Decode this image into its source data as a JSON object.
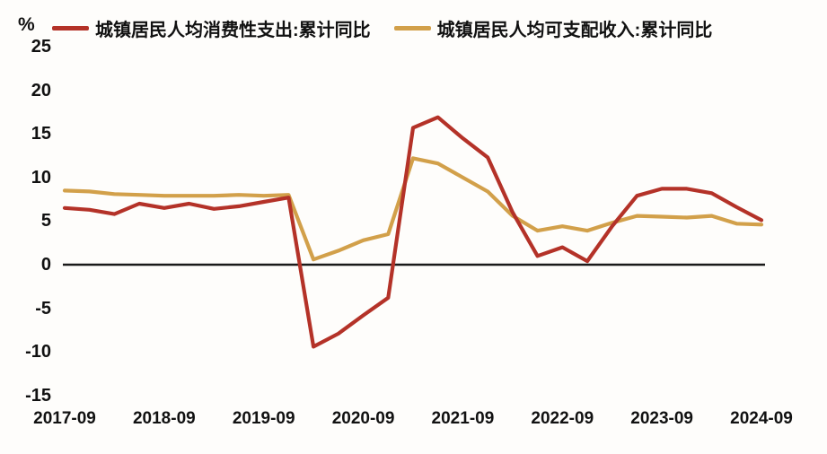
{
  "chart_data": {
    "type": "line",
    "title": "",
    "unit_label": "%",
    "xlabel": "",
    "ylabel": "%",
    "ylim": [
      -15,
      25
    ],
    "yticks": [
      25,
      20,
      15,
      10,
      5,
      0,
      -5,
      -10,
      -15
    ],
    "xticks": [
      "2017-09",
      "2018-09",
      "2019-09",
      "2020-09",
      "2021-09",
      "2022-09",
      "2023-09",
      "2024-09"
    ],
    "grid": false,
    "legend_position": "top",
    "zero_line": true,
    "zero_line_color": "#1a1a1a",
    "background_color": "#fefdfb",
    "text_color": "#111111",
    "categories": [
      "2017-09",
      "2017-12",
      "2018-03",
      "2018-06",
      "2018-09",
      "2018-12",
      "2019-03",
      "2019-06",
      "2019-09",
      "2019-12",
      "2020-03",
      "2020-06",
      "2020-09",
      "2020-12",
      "2021-03",
      "2021-06",
      "2021-09",
      "2021-12",
      "2022-03",
      "2022-06",
      "2022-09",
      "2022-12",
      "2023-03",
      "2023-06",
      "2023-09",
      "2023-12",
      "2024-03",
      "2024-06",
      "2024-09"
    ],
    "series": [
      {
        "name": "城镇居民人均消费性支出:累计同比",
        "color": "#b43228",
        "values": [
          6.5,
          6.3,
          5.8,
          7.0,
          6.5,
          7.0,
          6.4,
          6.7,
          7.2,
          7.7,
          -9.4,
          -7.9,
          -5.8,
          -3.8,
          15.7,
          16.9,
          14.5,
          12.3,
          6.0,
          1.0,
          2.0,
          0.4,
          4.4,
          7.9,
          8.7,
          8.7,
          8.2,
          6.6,
          5.1
        ]
      },
      {
        "name": "城镇居民人均可支配收入:累计同比",
        "color": "#d2a04a",
        "values": [
          8.5,
          8.4,
          8.1,
          8.0,
          7.9,
          7.9,
          7.9,
          8.0,
          7.9,
          8.0,
          0.6,
          1.6,
          2.8,
          3.5,
          12.2,
          11.6,
          10.0,
          8.4,
          5.6,
          3.9,
          4.4,
          3.9,
          4.8,
          5.6,
          5.5,
          5.4,
          5.6,
          4.7,
          4.6
        ]
      }
    ]
  }
}
